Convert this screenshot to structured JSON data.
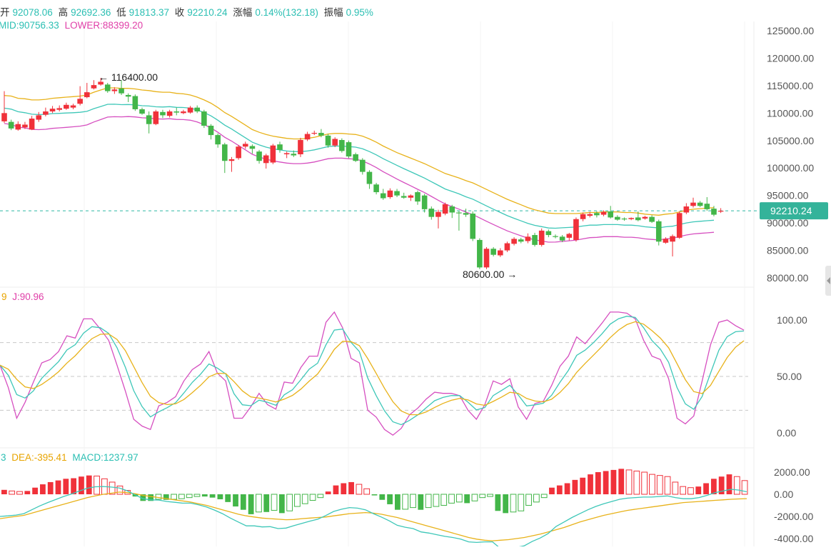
{
  "header": {
    "open_label": "开",
    "open": "92078.06",
    "high_label": "高",
    "high": "92692.36",
    "low_label": "低",
    "low": "91813.37",
    "close_label": "收",
    "close": "92210.24",
    "change_label": "涨幅",
    "change": "0.14%(132.18)",
    "amp_label": "振幅",
    "amp": "0.95%"
  },
  "boll_legend": {
    "mid": "MID:90756.33",
    "lower": "LOWER:88399.20"
  },
  "kdj_legend": {
    "d_partial": "9",
    "j": "J:90.96"
  },
  "macd_legend": {
    "dif_partial": "3",
    "dea": "DEA:-395.41",
    "macd": "MACD:1237.97"
  },
  "price_tag": "92210.24",
  "annotations": {
    "high_mark": "116400.00",
    "low_mark": "80600.00"
  },
  "colors": {
    "up": "#f0313a",
    "down": "#43b649",
    "upper_band": "#e8b21a",
    "mid_band": "#3ec7b8",
    "lower_band": "#d64fc0",
    "k_line": "#3ec7b8",
    "d_line": "#e8b21a",
    "j_line": "#d64fc0",
    "dif_line": "#3ec7b8",
    "dea_line": "#e8b21a",
    "last_price_line": "#2fb7a5"
  },
  "chart_data": [
    {
      "type": "candlestick",
      "panel": "price",
      "yticks": [
        125000,
        120000,
        115000,
        110000,
        105000,
        100000,
        95000,
        90000,
        85000,
        80000
      ],
      "ytick_labels": [
        "125000.00",
        "120000.00",
        "115000.00",
        "110000.00",
        "105000.00",
        "100000.00",
        "95000.00",
        "90000.00",
        "85000.00",
        "80000.00"
      ],
      "last_price": 92210.24,
      "candles": [
        [
          108500,
          110000,
          114000,
          108200
        ],
        [
          108400,
          107200,
          108800,
          106900
        ],
        [
          107000,
          108000,
          108500,
          106800
        ],
        [
          107400,
          107900,
          108400,
          107100
        ],
        [
          107000,
          109000,
          109500,
          106900
        ],
        [
          108800,
          109600,
          110200,
          108400
        ],
        [
          109700,
          110300,
          111000,
          109400
        ],
        [
          110300,
          110800,
          111300,
          110000
        ],
        [
          110600,
          110900,
          111400,
          110300
        ],
        [
          110800,
          111500,
          111900,
          110600
        ],
        [
          111000,
          111400,
          111700,
          110700
        ],
        [
          111700,
          112600,
          114900,
          111400
        ],
        [
          112900,
          113800,
          115500,
          112700
        ],
        [
          114500,
          115100,
          116000,
          114300
        ],
        [
          115200,
          115700,
          116400,
          115000
        ],
        [
          115200,
          114000,
          115500,
          113700
        ],
        [
          114000,
          114300,
          114700,
          113500
        ],
        [
          114500,
          113600,
          116000,
          113300
        ],
        [
          113300,
          113000,
          113600,
          112000
        ],
        [
          113100,
          110700,
          113400,
          110400
        ],
        [
          110700,
          109900,
          111000,
          109700
        ],
        [
          109600,
          108000,
          110300,
          106300
        ],
        [
          108000,
          110300,
          110600,
          107800
        ],
        [
          110200,
          109600,
          110600,
          109100
        ],
        [
          109500,
          110300,
          110600,
          109200
        ],
        [
          110300,
          110100,
          111000,
          109600
        ],
        [
          110000,
          110300,
          110600,
          109800
        ],
        [
          110100,
          111000,
          111300,
          109900
        ],
        [
          111000,
          110300,
          111400,
          110000
        ],
        [
          110300,
          107700,
          110600,
          107300
        ],
        [
          107700,
          106000,
          108000,
          105200
        ],
        [
          106000,
          104300,
          106300,
          103700
        ],
        [
          104300,
          101300,
          104600,
          99100
        ],
        [
          101300,
          101600,
          102000,
          99300
        ],
        [
          101800,
          103900,
          104200,
          101500
        ],
        [
          103900,
          104400,
          104800,
          103500
        ],
        [
          104000,
          103500,
          104300,
          102600
        ],
        [
          103000,
          101300,
          103300,
          100800
        ],
        [
          100900,
          102300,
          102600,
          99900
        ],
        [
          101000,
          104100,
          104400,
          100700
        ],
        [
          104300,
          103300,
          104800,
          102800
        ],
        [
          102500,
          102700,
          103000,
          101800
        ],
        [
          102600,
          102300,
          103200,
          102000
        ],
        [
          102500,
          105100,
          105500,
          102000
        ],
        [
          105200,
          106200,
          106600,
          104900
        ],
        [
          106300,
          106400,
          106800,
          106000
        ],
        [
          106400,
          105900,
          107100,
          105600
        ],
        [
          105900,
          104100,
          106200,
          103700
        ],
        [
          104100,
          105300,
          105600,
          103800
        ],
        [
          105100,
          103100,
          105400,
          102800
        ],
        [
          104700,
          102100,
          105000,
          101800
        ],
        [
          102500,
          101300,
          102800,
          101100
        ],
        [
          101500,
          99300,
          101800,
          98800
        ],
        [
          99300,
          97100,
          99600,
          96200
        ],
        [
          97000,
          95600,
          97300,
          95200
        ],
        [
          95400,
          94500,
          96200,
          94200
        ],
        [
          94700,
          95900,
          96300,
          94400
        ],
        [
          95800,
          95000,
          96200,
          94700
        ],
        [
          94900,
          94600,
          95500,
          94400
        ],
        [
          94600,
          95000,
          95200,
          94000
        ],
        [
          95600,
          93900,
          95900,
          93300
        ],
        [
          95000,
          92500,
          95300,
          91900
        ],
        [
          92600,
          91100,
          93000,
          90600
        ],
        [
          91100,
          92000,
          92400,
          89000
        ],
        [
          91700,
          93400,
          93700,
          91400
        ],
        [
          93000,
          91900,
          93300,
          90900
        ],
        [
          91900,
          91800,
          92200,
          88600
        ],
        [
          91800,
          91500,
          92600,
          91100
        ],
        [
          91700,
          87100,
          92100,
          86700
        ],
        [
          86900,
          81900,
          87200,
          81600
        ],
        [
          81900,
          85300,
          85600,
          81600
        ],
        [
          85300,
          84200,
          85600,
          83900
        ],
        [
          84100,
          85000,
          85400,
          83800
        ],
        [
          85000,
          86300,
          86600,
          84700
        ],
        [
          86200,
          87100,
          87400,
          85900
        ],
        [
          87000,
          86600,
          87300,
          86300
        ],
        [
          86700,
          87500,
          88100,
          86300
        ],
        [
          87800,
          86000,
          88200,
          85700
        ],
        [
          86000,
          88600,
          89000,
          85700
        ],
        [
          88500,
          87800,
          88800,
          87400
        ],
        [
          87600,
          87500,
          87900,
          87200
        ],
        [
          87500,
          86800,
          87800,
          86500
        ],
        [
          87300,
          88000,
          88200,
          86800
        ],
        [
          86900,
          90700,
          91000,
          86600
        ],
        [
          90700,
          91600,
          91900,
          90300
        ],
        [
          91300,
          91600,
          92000,
          91000
        ],
        [
          91800,
          91400,
          92100,
          91000
        ],
        [
          91500,
          92000,
          92300,
          91200
        ],
        [
          92100,
          91000,
          93100,
          90800
        ],
        [
          91100,
          90600,
          91400,
          90400
        ],
        [
          90800,
          90700,
          91000,
          90400
        ],
        [
          90700,
          90900,
          91000,
          90500
        ],
        [
          91000,
          90500,
          92100,
          90300
        ],
        [
          90800,
          91100,
          91300,
          90600
        ],
        [
          91100,
          90200,
          91400,
          90000
        ],
        [
          90300,
          86600,
          90600,
          85900
        ],
        [
          86400,
          87100,
          87400,
          86200
        ],
        [
          86600,
          87600,
          87900,
          83900
        ],
        [
          87300,
          91800,
          92100,
          87100
        ],
        [
          91900,
          93000,
          93600,
          91600
        ],
        [
          93100,
          93700,
          94600,
          92800
        ],
        [
          93700,
          93100,
          94000,
          92900
        ],
        [
          93500,
          92500,
          94700,
          92200
        ],
        [
          92600,
          91500,
          93100,
          91200
        ],
        [
          92078.06,
          92210.24,
          92692.36,
          91813.37
        ]
      ],
      "upper_band": [
        113200,
        113100,
        112700,
        112600,
        112400,
        112400,
        112500,
        112700,
        112800,
        112900,
        113000,
        113100,
        113300,
        113800,
        114200,
        114600,
        114600,
        114500,
        114500,
        114400,
        114200,
        114100,
        113900,
        113800,
        113800,
        113600,
        113500,
        113300,
        112900,
        112400,
        111800,
        111000,
        110100,
        109400,
        108600,
        107800,
        107000,
        106500,
        106100,
        105800,
        105600,
        105400,
        105300,
        105300,
        105400,
        105600,
        105900,
        106200,
        106300,
        106300,
        106200,
        106100,
        105800,
        105300,
        104700,
        104000,
        103400,
        102800,
        102300,
        101800,
        101300,
        100800,
        100200,
        99600,
        99000,
        98600,
        98200,
        97700,
        97300,
        96700,
        96100,
        95500,
        94900,
        94300,
        93800,
        93300,
        92800,
        92400,
        92100,
        91800,
        91700,
        91700,
        91700,
        91700,
        91800,
        91900,
        91900,
        92000,
        92000,
        92000,
        91900,
        91900,
        91800,
        91600,
        91500,
        91400,
        91600,
        91700,
        92000,
        92300,
        92500,
        92600,
        92700,
        92800
      ]
    },
    {
      "type": "line",
      "panel": "kdj",
      "yticks": [
        100,
        50,
        0
      ],
      "ytick_labels": [
        "100.00",
        "50.00",
        "0.00"
      ],
      "dashed_levels": [
        80,
        50,
        20
      ],
      "series": [
        {
          "name": "J:90.96",
          "values": [
            60,
            40,
            13,
            27,
            45,
            62,
            65,
            72,
            86,
            84,
            101,
            101,
            92,
            82,
            60,
            37,
            12,
            6,
            3,
            24,
            27,
            32,
            46,
            56,
            61,
            72,
            53,
            46,
            13,
            13,
            23,
            35,
            25,
            21,
            45,
            44,
            58,
            68,
            68,
            98,
            107,
            93,
            66,
            62,
            20,
            14,
            3,
            -2,
            4,
            16,
            22,
            30,
            36,
            35,
            35,
            33,
            20,
            12,
            25,
            46,
            43,
            48,
            23,
            12,
            26,
            28,
            42,
            59,
            68,
            85,
            79,
            88,
            97,
            107,
            107,
            106,
            101,
            82,
            68,
            65,
            48,
            13,
            8,
            15,
            46,
            78,
            98,
            100,
            95,
            91
          ]
        }
      ]
    },
    {
      "type": "bar",
      "panel": "macd",
      "yticks": [
        2000,
        0,
        -2000,
        -4000
      ],
      "ytick_labels": [
        "2000.00",
        "0.00",
        "-2000.00",
        "-4000.00"
      ],
      "series": [
        {
          "name": "MACD:1237.97",
          "values": [
            400,
            300,
            250,
            300,
            600,
            900,
            1100,
            1250,
            1400,
            1450,
            1600,
            1700,
            1650,
            1400,
            1100,
            750,
            350,
            -200,
            -600,
            -600,
            -450,
            -500,
            -450,
            -400,
            -300,
            -200,
            -200,
            -300,
            -450,
            -700,
            -1100,
            -1400,
            -1800,
            -1600,
            -1600,
            -1450,
            -1700,
            -1500,
            -1100,
            -850,
            -550,
            -300,
            250,
            800,
            1000,
            1100,
            900,
            500,
            -100,
            -500,
            -900,
            -1400,
            -1350,
            -1200,
            -1400,
            -1200,
            -1100,
            -1000,
            -800,
            -700,
            -800,
            -600,
            -300,
            -200,
            -1500,
            -1700,
            -1600,
            -1500,
            -1000,
            -700,
            -300,
            600,
            800,
            1000,
            1300,
            1500,
            1800,
            2000,
            2100,
            2200,
            2300,
            2200,
            2100,
            2000,
            1800,
            1700,
            1600,
            1100,
            700,
            600,
            700,
            1000,
            1400,
            1600,
            1800,
            1600,
            1238
          ]
        },
        {
          "name": "DEA:-395.41",
          "values": [
            -2200,
            -2100,
            -2000,
            -1900,
            -1700,
            -1500,
            -1300,
            -1100,
            -900,
            -700,
            -500,
            -300,
            -150,
            0,
            100,
            200,
            150,
            50,
            -100,
            -200,
            -300,
            -400,
            -500,
            -600,
            -700,
            -850,
            -1000,
            -1200,
            -1400,
            -1600,
            -1800,
            -1950,
            -2050,
            -2150,
            -2200,
            -2250,
            -2300,
            -2280,
            -2200,
            -2150,
            -2100,
            -2050,
            -1950,
            -1850,
            -1750,
            -1700,
            -1650,
            -1700,
            -1800,
            -1950,
            -2100,
            -2300,
            -2500,
            -2700,
            -2900,
            -3100,
            -3300,
            -3500,
            -3700,
            -3900,
            -4050,
            -4150,
            -4200,
            -4150,
            -4100,
            -4000,
            -3900,
            -3750,
            -3600,
            -3400,
            -3200,
            -3000,
            -2750,
            -2500,
            -2300,
            -2100,
            -1900,
            -1750,
            -1600,
            -1450,
            -1350,
            -1250,
            -1150,
            -1050,
            -950,
            -850,
            -750,
            -700,
            -650,
            -600,
            -550,
            -500,
            -450,
            -420,
            -395
          ]
        }
      ]
    }
  ]
}
